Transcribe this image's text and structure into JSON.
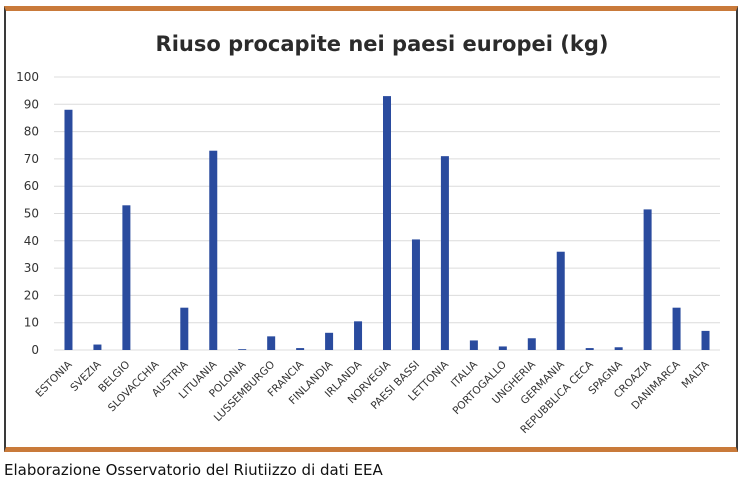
{
  "chart_data": {
    "type": "bar",
    "title": "Riuso procapite nei paesi europei (kg)",
    "xlabel": "",
    "ylabel": "",
    "ylim": [
      0,
      100
    ],
    "yticks": [
      0,
      10,
      20,
      30,
      40,
      50,
      60,
      70,
      80,
      90,
      100
    ],
    "grid": true,
    "color": "#2a4b9e",
    "categories": [
      "ESTONIA",
      "SVEZIA",
      "BELGIO",
      "SLOVACCHIA",
      "AUSTRIA",
      "LITUANIA",
      "POLONIA",
      "LUSSEMBURGO",
      "FRANCIA",
      "FINLANDIA",
      "IRLANDA",
      "NORVEGIA",
      "PAESI BASSI",
      "LETTONIA",
      "ITALIA",
      "PORTOGALLO",
      "UNGHERIA",
      "GERMANIA",
      "REPUBBLICA CECA",
      "SPAGNA",
      "CROAZIA",
      "DANIMARCA",
      "MALTA"
    ],
    "values": [
      88,
      2,
      53,
      0,
      15.5,
      73,
      0.3,
      5,
      0.7,
      6.3,
      10.5,
      93,
      40.5,
      71,
      3.5,
      1.3,
      4.3,
      36,
      0.7,
      1,
      51.5,
      15.5,
      7
    ]
  },
  "source": "Elaborazione Osservatorio del Riutiizzo di dati EEA"
}
